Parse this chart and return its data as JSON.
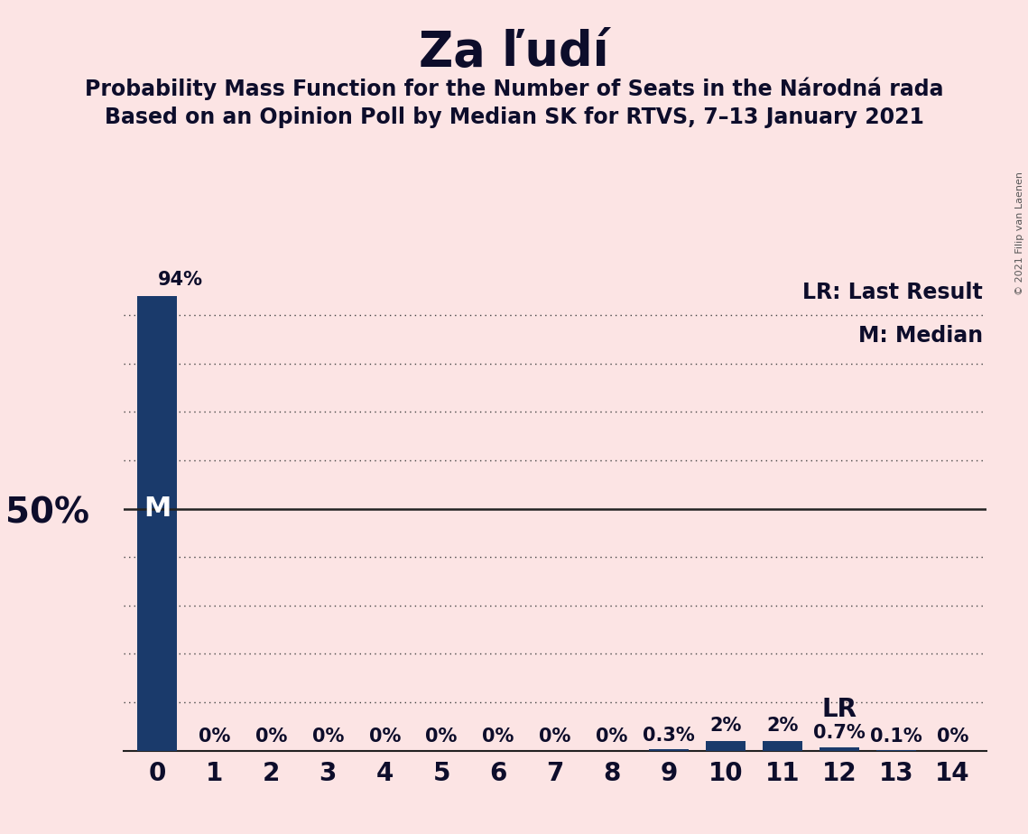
{
  "title": "Za ľudí",
  "subtitle1": "Probability Mass Function for the Number of Seats in the Národná rada",
  "subtitle2": "Based on an Opinion Poll by Median SK for RTVS, 7–13 January 2021",
  "copyright": "© 2021 Filip van Laenen",
  "categories": [
    0,
    1,
    2,
    3,
    4,
    5,
    6,
    7,
    8,
    9,
    10,
    11,
    12,
    13,
    14
  ],
  "values": [
    94,
    0,
    0,
    0,
    0,
    0,
    0,
    0,
    0,
    0.3,
    2,
    2,
    0.7,
    0.1,
    0
  ],
  "bar_labels": [
    "94%",
    "0%",
    "0%",
    "0%",
    "0%",
    "0%",
    "0%",
    "0%",
    "0%",
    "0.3%",
    "2%",
    "2%",
    "0.7%",
    "0.1%",
    "0%"
  ],
  "bar_color": "#1a3a6b",
  "background_color": "#fce4e4",
  "text_color": "#0d0d2b",
  "ylabel_50": "50%",
  "median_seat": 0,
  "last_result_seat": 12,
  "lr_label": "LR",
  "lr_legend": "LR: Last Result",
  "m_legend": "M: Median",
  "ylim": [
    0,
    100
  ],
  "dotted_lines": [
    10,
    20,
    30,
    40,
    60,
    70,
    80,
    90
  ],
  "title_fontsize": 38,
  "subtitle_fontsize": 17,
  "label_fontsize": 15,
  "tick_fontsize": 20,
  "fifty_fontsize": 28,
  "legend_fontsize": 17,
  "lr_annot_fontsize": 20,
  "m_inside_fontsize": 22,
  "copyright_fontsize": 8
}
